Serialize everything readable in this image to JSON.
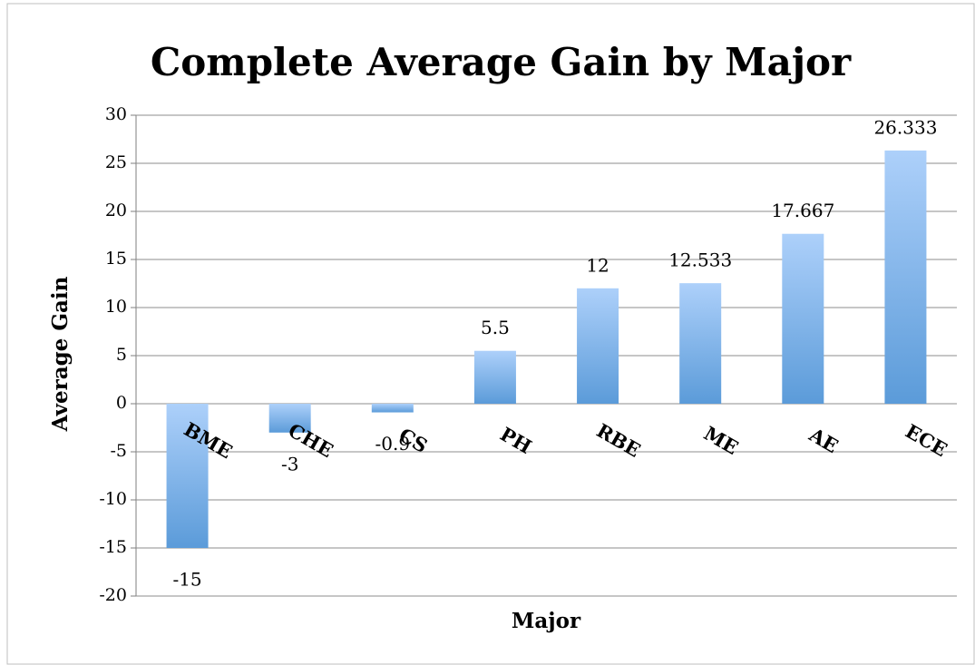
{
  "chart_data": {
    "type": "bar",
    "title": "Complete Average Gain by Major",
    "x_label": "Major",
    "y_label": "Average Gain",
    "categories": [
      "BME",
      "CHE",
      "CS",
      "PH",
      "RBE",
      "ME",
      "AE",
      "ECE"
    ],
    "values": [
      -15,
      -3,
      -0.9,
      5.5,
      12,
      12.533,
      17.667,
      26.333
    ],
    "color": "#5b9bd9",
    "ylim": [
      -20,
      30
    ],
    "yticks": [
      -20,
      -15,
      -10,
      -5,
      0,
      5,
      10,
      15,
      20,
      25,
      30
    ],
    "grid": true
  }
}
